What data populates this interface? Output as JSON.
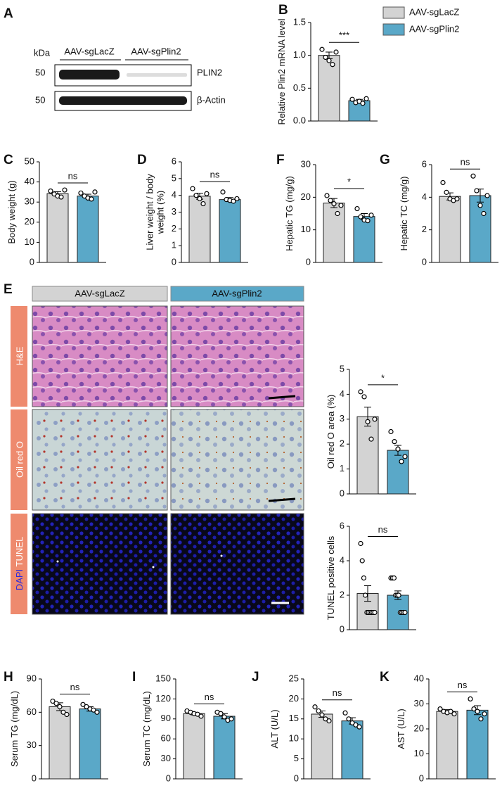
{
  "blot": {
    "panel": "A",
    "kda": "kDa",
    "markers": [
      "50",
      "50"
    ],
    "groups": [
      "AAV-sgLacZ",
      "AAV-sgPlin2"
    ],
    "proteins": [
      "PLIN2",
      "β-Actin"
    ]
  },
  "histology": {
    "panel": "E",
    "groups": [
      "AAV-sgLacZ",
      "AAV-sgPlin2"
    ],
    "row_labels": [
      "H&E",
      "Oil red O"
    ],
    "tunel_label": [
      "DAPI",
      "TUNEL"
    ]
  },
  "legend": [
    {
      "name": "AAV-sgLacZ",
      "color": "#d3d3d3"
    },
    {
      "name": "AAV-sgPlin2",
      "color": "#5aa8c8"
    }
  ],
  "chart_data": [
    {
      "type": "bar",
      "panel": "B",
      "ylabel": [
        "Relative Plin2 mRNA level"
      ],
      "ylim": [
        0,
        1.5
      ],
      "yticks": [
        {
          "value": 0,
          "label": "0.0"
        },
        0.5,
        {
          "value": 1,
          "label": "1.0"
        },
        1.5
      ],
      "values": [
        1.0,
        0.31
      ],
      "errors": [
        0.05,
        0.02
      ],
      "points": [
        [
          1.09,
          0.97,
          0.92,
          0.86,
          1.05
        ],
        [
          0.33,
          0.28,
          0.3,
          0.27,
          0.34
        ]
      ],
      "significance": "***"
    },
    {
      "type": "bar",
      "panel": "C",
      "ylabel": [
        "Body weight (g)"
      ],
      "ylim": [
        0,
        50
      ],
      "yticks": [
        0,
        10,
        20,
        30,
        40,
        50
      ],
      "values": [
        34.2,
        33.0
      ],
      "errors": [
        1.0,
        0.9
      ],
      "points": [
        [
          35.5,
          34,
          33,
          32.5,
          36
        ],
        [
          34.5,
          33,
          32,
          31.5,
          35
        ]
      ],
      "significance": "ns"
    },
    {
      "type": "bar",
      "panel": "D",
      "ylabel": [
        "Liver weight / body",
        "weight (%)"
      ],
      "ylim": [
        0,
        6
      ],
      "yticks": [
        0,
        1,
        2,
        3,
        4,
        5,
        6
      ],
      "values": [
        3.95,
        3.75
      ],
      "errors": [
        0.18,
        0.12
      ],
      "points": [
        [
          4.4,
          4.0,
          3.8,
          3.5,
          4.1
        ],
        [
          4.2,
          3.75,
          3.7,
          3.65,
          3.8
        ]
      ],
      "significance": "ns"
    },
    {
      "type": "bar",
      "panel": "F",
      "ylabel": [
        "Hepatic TG (mg/g)"
      ],
      "ylim": [
        0,
        30
      ],
      "yticks": [
        0,
        10,
        20,
        30
      ],
      "values": [
        18.2,
        14.1
      ],
      "errors": [
        1.4,
        0.9
      ],
      "points": [
        [
          20.5,
          19,
          18,
          15,
          17.5
        ],
        [
          16.5,
          14,
          13,
          12.8,
          14.5
        ]
      ],
      "significance": "*"
    },
    {
      "type": "bar",
      "panel": "G",
      "ylabel": [
        "Hepatic TC (mg/g)"
      ],
      "ylim": [
        0,
        6
      ],
      "yticks": [
        0,
        2,
        4,
        6
      ],
      "values": [
        4.05,
        4.1
      ],
      "errors": [
        0.22,
        0.4
      ],
      "points": [
        [
          4.9,
          4.3,
          3.9,
          3.8,
          3.9
        ],
        [
          5.3,
          4.4,
          3.5,
          3.0,
          4.1
        ]
      ],
      "significance": "ns"
    },
    {
      "type": "bar",
      "ylabel": [
        "Oil red O area (%)"
      ],
      "ylim": [
        0,
        5
      ],
      "yticks": [
        0,
        1,
        2,
        3,
        4,
        5
      ],
      "values": [
        3.1,
        1.75
      ],
      "errors": [
        0.38,
        0.2
      ],
      "points": [
        [
          4.1,
          3.9,
          2.9,
          2.2,
          3.0
        ],
        [
          2.5,
          2.1,
          1.8,
          1.3,
          1.5
        ]
      ],
      "significance": "*"
    },
    {
      "type": "bar",
      "ylabel": [
        "TUNEL positive cells"
      ],
      "ylim": [
        0,
        6
      ],
      "yticks": [
        0,
        2,
        4,
        6
      ],
      "values": [
        2.1,
        2.0
      ],
      "errors": [
        0.45,
        0.25
      ],
      "points": [
        [
          5,
          4,
          3,
          2,
          1,
          1,
          1,
          1,
          1,
          1
        ],
        [
          3,
          3,
          3,
          2,
          2,
          2,
          1,
          1,
          1,
          1
        ]
      ],
      "significance": "ns"
    },
    {
      "type": "bar",
      "panel": "H",
      "ylabel": [
        "Serum TG (mg/dL)"
      ],
      "ylim": [
        0,
        90
      ],
      "yticks": [
        0,
        30,
        60,
        90
      ],
      "values": [
        65,
        63
      ],
      "errors": [
        3.5,
        2
      ],
      "points": [
        [
          70,
          68,
          65,
          60,
          58
        ],
        [
          67,
          65,
          63,
          62,
          60
        ]
      ],
      "significance": "ns"
    },
    {
      "type": "bar",
      "panel": "I",
      "ylabel": [
        "Serum TC (mg/dL)"
      ],
      "ylim": [
        0,
        150
      ],
      "yticks": [
        0,
        30,
        60,
        90,
        120,
        150
      ],
      "values": [
        98,
        94
      ],
      "errors": [
        2,
        4
      ],
      "points": [
        [
          102,
          100,
          98,
          97,
          94
        ],
        [
          100,
          98,
          93,
          88,
          90
        ]
      ],
      "significance": "ns"
    },
    {
      "type": "bar",
      "panel": "J",
      "ylabel": [
        "ALT (U/L)"
      ],
      "ylim": [
        0,
        25
      ],
      "yticks": [
        0,
        5,
        10,
        15,
        20,
        25
      ],
      "values": [
        16.2,
        14.5
      ],
      "errors": [
        0.8,
        0.8
      ],
      "points": [
        [
          18,
          17,
          16,
          15,
          14.5
        ],
        [
          16.5,
          15,
          14,
          13.5,
          13
        ]
      ],
      "significance": "ns"
    },
    {
      "type": "bar",
      "panel": "K",
      "ylabel": [
        "AST (U/L)"
      ],
      "ylim": [
        0,
        40
      ],
      "yticks": [
        0,
        10,
        20,
        30,
        40
      ],
      "values": [
        27,
        27.5
      ],
      "errors": [
        0.7,
        1.8
      ],
      "points": [
        [
          28,
          27,
          26.5,
          27,
          26
        ],
        [
          32,
          28,
          27,
          24,
          26
        ]
      ],
      "significance": "ns"
    }
  ]
}
